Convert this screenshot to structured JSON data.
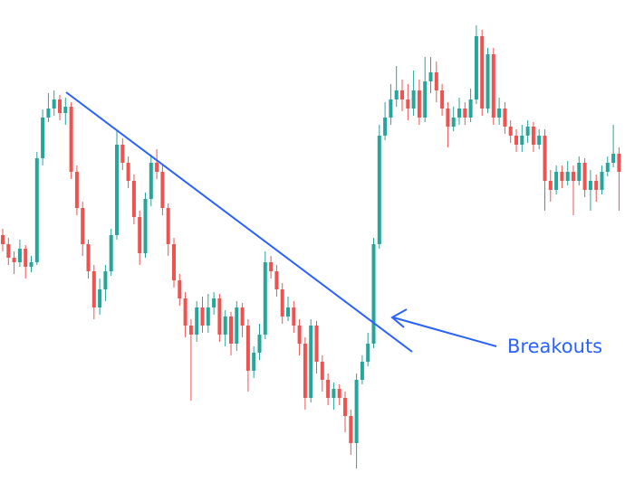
{
  "chart_data": {
    "type": "candlestick",
    "annotation": "Breakouts",
    "up_color": "#26a69a",
    "down_color": "#ef5350",
    "annotation_color": "#2962ff",
    "ylim": [
      0,
      533
    ],
    "open": [
      273,
      263,
      248,
      243,
      258,
      238,
      243,
      358,
      403,
      413,
      423,
      408,
      415,
      343,
      303,
      263,
      233,
      193,
      213,
      233,
      273,
      373,
      353,
      333,
      293,
      253,
      313,
      353,
      343,
      303,
      263,
      223,
      203,
      173,
      163,
      193,
      173,
      193,
      203,
      163,
      183,
      153,
      193,
      173,
      123,
      143,
      163,
      243,
      233,
      213,
      183,
      193,
      173,
      153,
      93,
      173,
      133,
      113,
      93,
      103,
      93,
      73,
      43,
      113,
      133,
      153,
      263,
      383,
      403,
      423,
      433,
      423,
      413,
      433,
      403,
      443,
      453,
      433,
      413,
      393,
      403,
      413,
      403,
      423,
      493,
      413,
      473,
      403,
      413,
      393,
      383,
      373,
      383,
      393,
      373,
      383,
      333,
      323,
      343,
      333,
      343,
      333,
      353,
      323,
      333,
      323,
      343,
      353,
      363
    ],
    "high": [
      280,
      270,
      255,
      268,
      262,
      250,
      365,
      412,
      430,
      433,
      428,
      425,
      420,
      350,
      310,
      268,
      240,
      225,
      240,
      280,
      388,
      380,
      360,
      340,
      300,
      320,
      362,
      368,
      350,
      308,
      270,
      230,
      210,
      180,
      200,
      205,
      208,
      210,
      208,
      190,
      188,
      200,
      198,
      180,
      150,
      175,
      255,
      250,
      240,
      220,
      205,
      200,
      180,
      160,
      180,
      178,
      140,
      120,
      110,
      108,
      100,
      80,
      120,
      140,
      165,
      270,
      395,
      420,
      440,
      460,
      445,
      440,
      455,
      445,
      470,
      470,
      465,
      440,
      420,
      415,
      425,
      420,
      435,
      505,
      500,
      480,
      480,
      425,
      420,
      400,
      390,
      395,
      400,
      398,
      390,
      390,
      345,
      350,
      350,
      355,
      350,
      360,
      358,
      345,
      340,
      350,
      360,
      395,
      370
    ],
    "low": [
      255,
      240,
      230,
      238,
      225,
      232,
      240,
      350,
      398,
      405,
      400,
      395,
      335,
      295,
      250,
      225,
      180,
      185,
      200,
      228,
      268,
      345,
      325,
      285,
      240,
      248,
      305,
      335,
      295,
      250,
      215,
      195,
      160,
      90,
      155,
      165,
      165,
      185,
      155,
      150,
      140,
      145,
      160,
      100,
      115,
      135,
      158,
      225,
      205,
      175,
      178,
      165,
      140,
      80,
      88,
      120,
      100,
      85,
      80,
      85,
      55,
      30,
      15,
      108,
      128,
      148,
      258,
      378,
      395,
      415,
      410,
      400,
      405,
      395,
      398,
      430,
      420,
      405,
      370,
      388,
      395,
      395,
      398,
      418,
      405,
      408,
      395,
      395,
      385,
      375,
      365,
      365,
      375,
      365,
      368,
      300,
      310,
      318,
      325,
      328,
      295,
      328,
      315,
      300,
      310,
      318,
      338,
      348,
      300
    ],
    "close": [
      263,
      248,
      243,
      258,
      238,
      243,
      358,
      403,
      413,
      423,
      408,
      415,
      343,
      303,
      263,
      233,
      193,
      213,
      233,
      273,
      373,
      353,
      333,
      293,
      253,
      313,
      353,
      343,
      303,
      263,
      223,
      203,
      173,
      163,
      193,
      173,
      193,
      203,
      163,
      183,
      153,
      193,
      173,
      123,
      143,
      163,
      243,
      233,
      213,
      183,
      193,
      173,
      153,
      93,
      173,
      133,
      113,
      93,
      103,
      93,
      73,
      43,
      113,
      133,
      153,
      263,
      383,
      403,
      423,
      433,
      423,
      413,
      433,
      403,
      443,
      453,
      433,
      413,
      393,
      403,
      413,
      403,
      423,
      493,
      413,
      473,
      403,
      413,
      393,
      383,
      373,
      383,
      393,
      373,
      383,
      333,
      323,
      343,
      333,
      343,
      333,
      353,
      323,
      333,
      323,
      343,
      353,
      363,
      343
    ]
  }
}
